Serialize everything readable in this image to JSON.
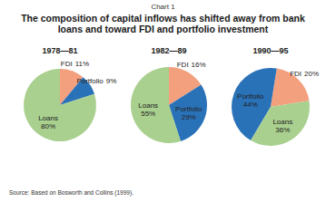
{
  "figure": {
    "label": "Chart 1",
    "title": "The composition of capital inflows has shifted away from bank loans and toward FDI and portfolio investment",
    "source": "Source: Based on Bosworth and Collins (1999)."
  },
  "chart_data": [
    {
      "type": "pie",
      "title": "1978—81",
      "categories": [
        "FDI",
        "Portfolio",
        "Loans"
      ],
      "values": [
        11,
        9,
        80
      ],
      "value_labels": [
        "11%",
        "9%",
        "80%"
      ],
      "colors": [
        "#f3a07f",
        "#2a72b8",
        "#a9d08e"
      ],
      "data_labels": true
    },
    {
      "type": "pie",
      "title": "1982—89",
      "categories": [
        "FDI",
        "Portfolio",
        "Loans"
      ],
      "values": [
        16,
        29,
        55
      ],
      "value_labels": [
        "16%",
        "29%",
        "55%"
      ],
      "colors": [
        "#f3a07f",
        "#2a72b8",
        "#a9d08e"
      ],
      "data_labels": true
    },
    {
      "type": "pie",
      "title": "1990—95",
      "categories": [
        "FDI",
        "Portfolio",
        "Loans"
      ],
      "values": [
        20,
        44,
        36
      ],
      "value_labels": [
        "20%",
        "44%",
        "36%"
      ],
      "colors": [
        "#f3a07f",
        "#2a72b8",
        "#a9d08e"
      ],
      "data_labels": true
    }
  ]
}
